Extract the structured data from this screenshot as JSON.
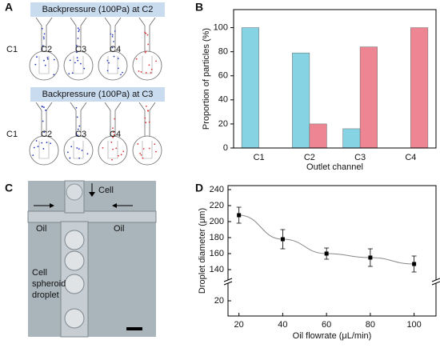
{
  "panels": {
    "A": {
      "label": "A",
      "groups": [
        {
          "title": "Backpressure (100Pa) at C2",
          "labels": [
            "C1",
            "C2",
            "C3",
            "C4"
          ]
        },
        {
          "title": "Backpressure (100Pa) at C3",
          "labels": [
            "C1",
            "C2",
            "C3",
            "C4"
          ]
        }
      ]
    },
    "B": {
      "label": "B"
    },
    "C": {
      "label": "C",
      "cell": "Cell",
      "oil_left": "Oil",
      "oil_right": "Oil",
      "droplet": [
        "Cell",
        "spheroid",
        "droplet"
      ]
    },
    "D": {
      "label": "D"
    }
  },
  "chart_data": [
    {
      "type": "bar",
      "categories": [
        "C1",
        "C2",
        "C3",
        "C4"
      ],
      "series": [
        {
          "color": "#86d3e3",
          "values": [
            100,
            79,
            16,
            0
          ]
        },
        {
          "color": "#ee8593",
          "values": [
            0,
            20,
            84,
            100
          ]
        }
      ],
      "ylim": [
        0,
        115
      ],
      "yticks": [
        0,
        20,
        40,
        60,
        80,
        100
      ],
      "y_label": "Proportion of particles (%)",
      "x_label": "Outlet channel"
    },
    {
      "type": "line",
      "x": [
        20,
        40,
        60,
        80,
        100
      ],
      "values": [
        208,
        178,
        160,
        155,
        147
      ],
      "errors": [
        10,
        12,
        7,
        11,
        10
      ],
      "color": "#000000",
      "line_color": "#888888",
      "xlim": [
        15,
        110
      ],
      "xticks": [
        20,
        40,
        60,
        80,
        100
      ],
      "ylim": [
        130,
        245
      ],
      "yticks": [
        140,
        160,
        180,
        200,
        220,
        240
      ],
      "lower_ylim": [
        10,
        30
      ],
      "lower_yticks": [
        20
      ],
      "y_label": "Droplet diameter (μm)",
      "x_label": "Oil flowrate (μL/min)"
    }
  ]
}
